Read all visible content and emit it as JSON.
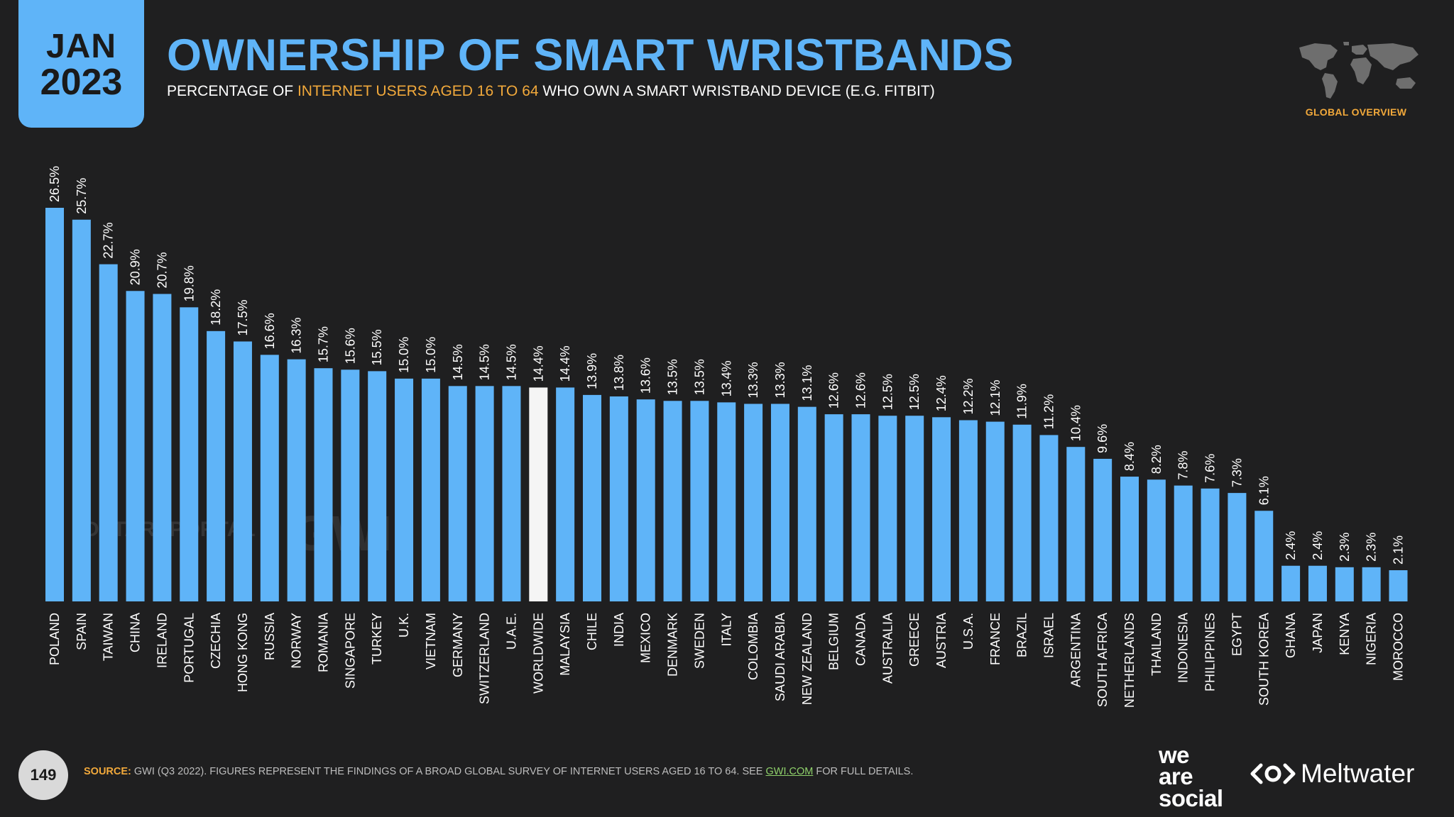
{
  "header": {
    "month": "JAN",
    "year": "2023",
    "title": "OWNERSHIP OF SMART WRISTBANDS",
    "subtitle_pre": "PERCENTAGE OF ",
    "subtitle_highlight": "INTERNET USERS AGED 16 TO 64",
    "subtitle_post": " WHO OWN A SMART WRISTBAND DEVICE (E.G. FITBIT)",
    "section_label": "GLOBAL OVERVIEW"
  },
  "colors": {
    "accent": "#5fb4f8",
    "highlight_bar": "#f5f5f5",
    "orange": "#f2a93b",
    "background": "#1f1f20"
  },
  "watermark": {
    "datareportal": "DATAREPORTAL",
    "gwi": "GWI."
  },
  "footer": {
    "page_number": "149",
    "source_label": "SOURCE:",
    "source_text_1": " GWI (Q3 2022). FIGURES REPRESENT THE FINDINGS OF A BROAD GLOBAL SURVEY OF INTERNET USERS AGED 16 TO 64. SEE ",
    "source_link": "GWI.COM",
    "source_text_2": " FOR FULL DETAILS.",
    "logo_we_are_social_line1": "we",
    "logo_we_are_social_line2": "are",
    "logo_we_are_social_line3": "social",
    "logo_meltwater": "Meltwater"
  },
  "chart_data": {
    "type": "bar",
    "title": "OWNERSHIP OF SMART WRISTBANDS",
    "xlabel": "",
    "ylabel": "",
    "ylim": [
      0,
      26.5
    ],
    "grid": false,
    "highlight_category": "WORLDWIDE",
    "categories": [
      "POLAND",
      "SPAIN",
      "TAIWAN",
      "CHINA",
      "IRELAND",
      "PORTUGAL",
      "CZECHIA",
      "HONG KONG",
      "RUSSIA",
      "NORWAY",
      "ROMANIA",
      "SINGAPORE",
      "TURKEY",
      "U.K.",
      "VIETNAM",
      "GERMANY",
      "SWITZERLAND",
      "U.A.E.",
      "WORLDWIDE",
      "MALAYSIA",
      "CHILE",
      "INDIA",
      "MEXICO",
      "DENMARK",
      "SWEDEN",
      "ITALY",
      "COLOMBIA",
      "SAUDI ARABIA",
      "NEW ZEALAND",
      "BELGIUM",
      "CANADA",
      "AUSTRALIA",
      "GREECE",
      "AUSTRIA",
      "U.S.A.",
      "FRANCE",
      "BRAZIL",
      "ISRAEL",
      "ARGENTINA",
      "SOUTH AFRICA",
      "NETHERLANDS",
      "THAILAND",
      "INDONESIA",
      "PHILIPPINES",
      "EGYPT",
      "SOUTH KOREA",
      "GHANA",
      "JAPAN",
      "KENYA",
      "NIGERIA",
      "MOROCCO"
    ],
    "values": [
      26.5,
      25.7,
      22.7,
      20.9,
      20.7,
      19.8,
      18.2,
      17.5,
      16.6,
      16.3,
      15.7,
      15.6,
      15.5,
      15.0,
      15.0,
      14.5,
      14.5,
      14.5,
      14.4,
      14.4,
      13.9,
      13.8,
      13.6,
      13.5,
      13.5,
      13.4,
      13.3,
      13.3,
      13.1,
      12.6,
      12.6,
      12.5,
      12.5,
      12.4,
      12.2,
      12.1,
      11.9,
      11.2,
      10.4,
      9.6,
      8.4,
      8.2,
      7.8,
      7.6,
      7.3,
      6.1,
      2.4,
      2.4,
      2.3,
      2.3,
      2.1
    ],
    "labels": [
      "26.5%",
      "25.7%",
      "22.7%",
      "20.9%",
      "20.7%",
      "19.8%",
      "18.2%",
      "17.5%",
      "16.6%",
      "16.3%",
      "15.7%",
      "15.6%",
      "15.5%",
      "15.0%",
      "15.0%",
      "14.5%",
      "14.5%",
      "14.5%",
      "14.4%",
      "14.4%",
      "13.9%",
      "13.8%",
      "13.6%",
      "13.5%",
      "13.5%",
      "13.4%",
      "13.3%",
      "13.3%",
      "13.1%",
      "12.6%",
      "12.6%",
      "12.5%",
      "12.5%",
      "12.4%",
      "12.2%",
      "12.1%",
      "11.9%",
      "11.2%",
      "10.4%",
      "9.6%",
      "8.4%",
      "8.2%",
      "7.8%",
      "7.6%",
      "7.3%",
      "6.1%",
      "2.4%",
      "2.4%",
      "2.3%",
      "2.3%",
      "2.1%"
    ]
  }
}
